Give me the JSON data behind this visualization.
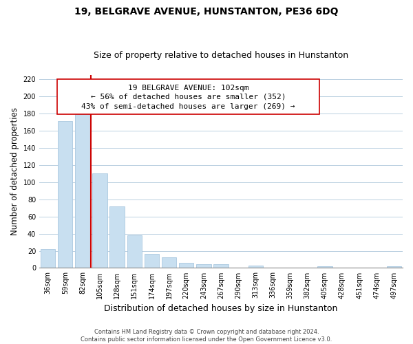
{
  "title": "19, BELGRAVE AVENUE, HUNSTANTON, PE36 6DQ",
  "subtitle": "Size of property relative to detached houses in Hunstanton",
  "xlabel": "Distribution of detached houses by size in Hunstanton",
  "ylabel": "Number of detached properties",
  "footnote1": "Contains HM Land Registry data © Crown copyright and database right 2024.",
  "footnote2": "Contains public sector information licensed under the Open Government Licence v3.0.",
  "bar_labels": [
    "36sqm",
    "59sqm",
    "82sqm",
    "105sqm",
    "128sqm",
    "151sqm",
    "174sqm",
    "197sqm",
    "220sqm",
    "243sqm",
    "267sqm",
    "290sqm",
    "313sqm",
    "336sqm",
    "359sqm",
    "382sqm",
    "405sqm",
    "428sqm",
    "451sqm",
    "474sqm",
    "497sqm"
  ],
  "bar_values": [
    22,
    171,
    179,
    110,
    72,
    38,
    16,
    12,
    6,
    4,
    4,
    0,
    3,
    0,
    0,
    0,
    2,
    0,
    0,
    0,
    2
  ],
  "bar_color": "#c8dff0",
  "bar_edge_color": "#aac8e0",
  "property_line_label": "19 BELGRAVE AVENUE: 102sqm",
  "annotation_line1": "← 56% of detached houses are smaller (352)",
  "annotation_line2": "43% of semi-detached houses are larger (269) →",
  "vline_color": "#cc0000",
  "box_color": "#ffffff",
  "box_edge_color": "#cc0000",
  "ylim": [
    0,
    225
  ],
  "yticks": [
    0,
    20,
    40,
    60,
    80,
    100,
    120,
    140,
    160,
    180,
    200,
    220
  ],
  "grid_color": "#b8cfe0",
  "title_fontsize": 10,
  "subtitle_fontsize": 9,
  "xlabel_fontsize": 9,
  "ylabel_fontsize": 8.5,
  "tick_fontsize": 7,
  "annot_fontsize": 8,
  "footnote_fontsize": 6
}
